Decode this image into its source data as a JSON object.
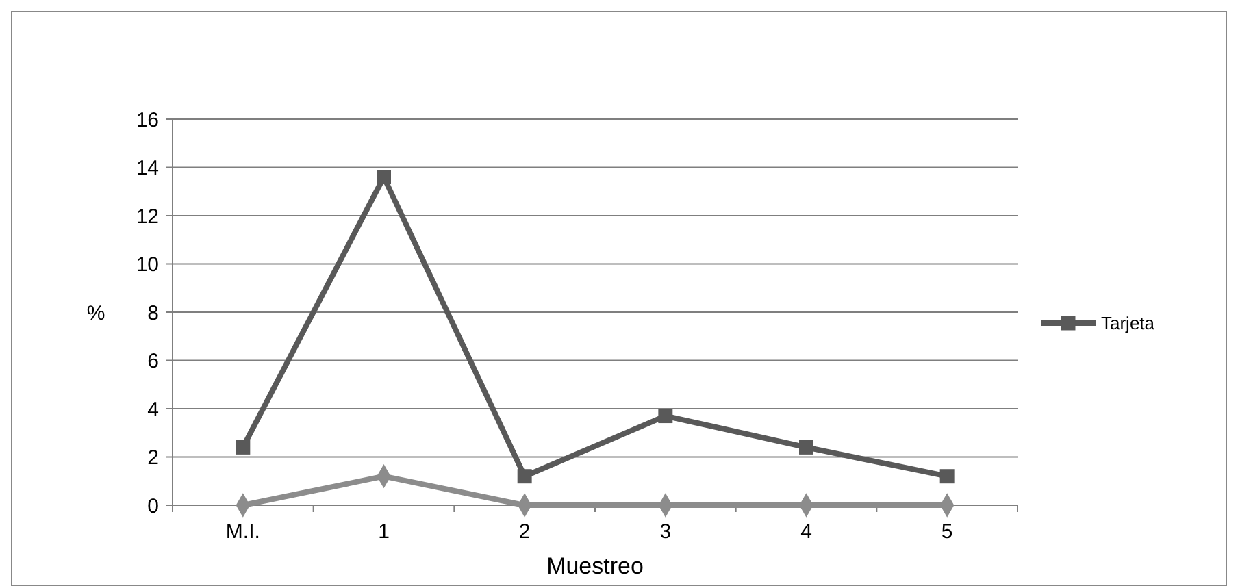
{
  "chart_data": {
    "type": "line",
    "xlabel": "Muestreo",
    "ylabel": "%",
    "categories": [
      "M.I.",
      "1",
      "2",
      "3",
      "4",
      "5"
    ],
    "series": [
      {
        "name": "Tarjeta",
        "color": "#595959",
        "marker": "square",
        "values": [
          2.4,
          13.6,
          1.2,
          3.7,
          2.4,
          1.2
        ]
      },
      {
        "color": "#8c8c8c",
        "marker": "diamond",
        "values": [
          0,
          1.2,
          0,
          0,
          0,
          0
        ]
      }
    ],
    "ylim": [
      0,
      16
    ],
    "yticks": [
      0,
      2,
      4,
      6,
      8,
      10,
      12,
      14,
      16
    ],
    "grid": "y",
    "legend": "right"
  }
}
